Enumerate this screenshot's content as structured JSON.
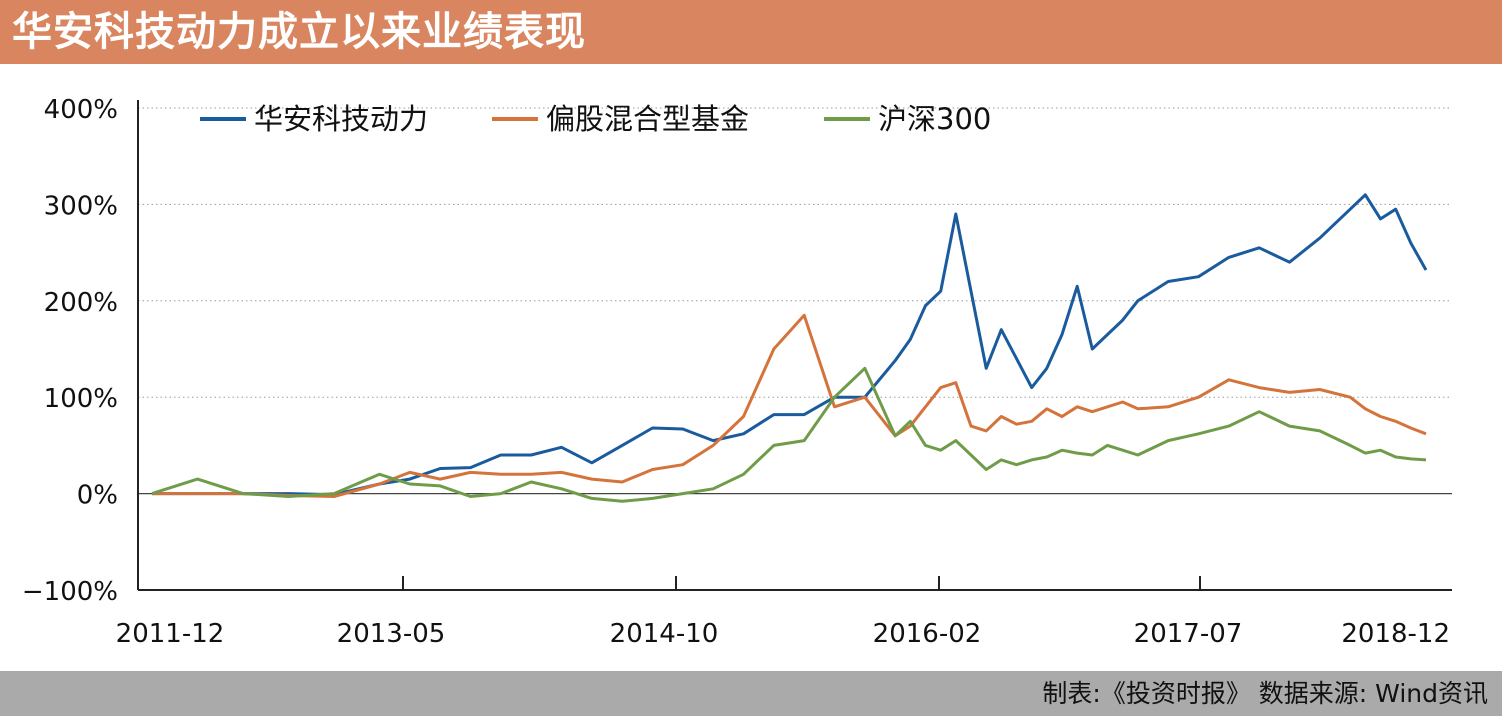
{
  "header": {
    "title": "华安科技动力成立以来业绩表现"
  },
  "footer": {
    "source": "制表:《投资时报》 数据来源: Wind资讯"
  },
  "colors": {
    "header_bg": "#d9855f",
    "footer_bg": "#aaaaaa",
    "series": [
      "#1a5b9e",
      "#d4743c",
      "#6f9c48"
    ]
  },
  "chart_data": {
    "type": "line",
    "y_unit": "%",
    "ylim": [
      -100,
      400
    ],
    "yticks": [
      -100,
      0,
      100,
      200,
      300,
      400
    ],
    "ytick_labels": [
      "−100%",
      "0%",
      "100%",
      "200%",
      "300%",
      "400%"
    ],
    "x_range": [
      "2011-12",
      "2018-12"
    ],
    "xtick_labels": [
      "2011-12",
      "2013-05",
      "2014-10",
      "2016-02",
      "2017-07",
      "2018-12"
    ],
    "grid": "horizontal dotted",
    "legend_position": "top-left",
    "series": [
      {
        "name": "华安科技动力",
        "color": "#1a5b9e",
        "points": [
          [
            "2011-12",
            0
          ],
          [
            "2012-03",
            0
          ],
          [
            "2012-06",
            0
          ],
          [
            "2012-09",
            0
          ],
          [
            "2012-12",
            -1
          ],
          [
            "2013-03",
            10
          ],
          [
            "2013-05",
            15
          ],
          [
            "2013-07",
            26
          ],
          [
            "2013-09",
            27
          ],
          [
            "2013-11",
            40
          ],
          [
            "2014-01",
            40
          ],
          [
            "2014-03",
            48
          ],
          [
            "2014-05",
            32
          ],
          [
            "2014-07",
            50
          ],
          [
            "2014-09",
            68
          ],
          [
            "2014-11",
            67
          ],
          [
            "2015-01",
            55
          ],
          [
            "2015-03",
            62
          ],
          [
            "2015-05",
            82
          ],
          [
            "2015-07",
            82
          ],
          [
            "2015-09",
            100
          ],
          [
            "2015-11",
            100
          ],
          [
            "2016-01",
            138
          ],
          [
            "2016-02",
            160
          ],
          [
            "2016-03",
            195
          ],
          [
            "2016-04",
            210
          ],
          [
            "2016-05",
            290
          ],
          [
            "2016-06",
            210
          ],
          [
            "2016-07",
            130
          ],
          [
            "2016-08",
            170
          ],
          [
            "2016-09",
            140
          ],
          [
            "2016-10",
            110
          ],
          [
            "2016-11",
            130
          ],
          [
            "2016-12",
            165
          ],
          [
            "2017-01",
            215
          ],
          [
            "2017-02",
            150
          ],
          [
            "2017-03",
            165
          ],
          [
            "2017-04",
            180
          ],
          [
            "2017-05",
            200
          ],
          [
            "2017-07",
            220
          ],
          [
            "2017-09",
            225
          ],
          [
            "2017-11",
            245
          ],
          [
            "2018-01",
            255
          ],
          [
            "2018-03",
            240
          ],
          [
            "2018-05",
            265
          ],
          [
            "2018-07",
            295
          ],
          [
            "2018-08",
            310
          ],
          [
            "2018-09",
            285
          ],
          [
            "2018-10",
            295
          ],
          [
            "2018-11",
            260
          ],
          [
            "2018-12",
            232
          ]
        ]
      },
      {
        "name": "偏股混合型基金",
        "color": "#d4743c",
        "points": [
          [
            "2011-12",
            0
          ],
          [
            "2012-03",
            0
          ],
          [
            "2012-06",
            0
          ],
          [
            "2012-09",
            -2
          ],
          [
            "2012-12",
            -3
          ],
          [
            "2013-03",
            10
          ],
          [
            "2013-05",
            22
          ],
          [
            "2013-07",
            15
          ],
          [
            "2013-09",
            22
          ],
          [
            "2013-11",
            20
          ],
          [
            "2014-01",
            20
          ],
          [
            "2014-03",
            22
          ],
          [
            "2014-05",
            15
          ],
          [
            "2014-07",
            12
          ],
          [
            "2014-09",
            25
          ],
          [
            "2014-11",
            30
          ],
          [
            "2015-01",
            50
          ],
          [
            "2015-03",
            80
          ],
          [
            "2015-05",
            150
          ],
          [
            "2015-07",
            185
          ],
          [
            "2015-09",
            90
          ],
          [
            "2015-11",
            100
          ],
          [
            "2016-01",
            60
          ],
          [
            "2016-02",
            70
          ],
          [
            "2016-03",
            90
          ],
          [
            "2016-04",
            110
          ],
          [
            "2016-05",
            115
          ],
          [
            "2016-06",
            70
          ],
          [
            "2016-07",
            65
          ],
          [
            "2016-08",
            80
          ],
          [
            "2016-09",
            72
          ],
          [
            "2016-10",
            75
          ],
          [
            "2016-11",
            88
          ],
          [
            "2016-12",
            80
          ],
          [
            "2017-01",
            90
          ],
          [
            "2017-02",
            85
          ],
          [
            "2017-03",
            90
          ],
          [
            "2017-04",
            95
          ],
          [
            "2017-05",
            88
          ],
          [
            "2017-07",
            90
          ],
          [
            "2017-09",
            100
          ],
          [
            "2017-11",
            118
          ],
          [
            "2018-01",
            110
          ],
          [
            "2018-03",
            105
          ],
          [
            "2018-05",
            108
          ],
          [
            "2018-07",
            100
          ],
          [
            "2018-08",
            88
          ],
          [
            "2018-09",
            80
          ],
          [
            "2018-10",
            75
          ],
          [
            "2018-11",
            68
          ],
          [
            "2018-12",
            62
          ]
        ]
      },
      {
        "name": "沪深300",
        "color": "#6f9c48",
        "points": [
          [
            "2011-12",
            0
          ],
          [
            "2012-03",
            15
          ],
          [
            "2012-06",
            0
          ],
          [
            "2012-09",
            -3
          ],
          [
            "2012-12",
            0
          ],
          [
            "2013-03",
            20
          ],
          [
            "2013-05",
            10
          ],
          [
            "2013-07",
            8
          ],
          [
            "2013-09",
            -3
          ],
          [
            "2013-11",
            0
          ],
          [
            "2014-01",
            12
          ],
          [
            "2014-03",
            5
          ],
          [
            "2014-05",
            -5
          ],
          [
            "2014-07",
            -8
          ],
          [
            "2014-09",
            -5
          ],
          [
            "2014-11",
            0
          ],
          [
            "2015-01",
            5
          ],
          [
            "2015-03",
            20
          ],
          [
            "2015-05",
            50
          ],
          [
            "2015-07",
            55
          ],
          [
            "2015-09",
            100
          ],
          [
            "2015-11",
            130
          ],
          [
            "2016-01",
            60
          ],
          [
            "2016-02",
            75
          ],
          [
            "2016-03",
            50
          ],
          [
            "2016-04",
            45
          ],
          [
            "2016-05",
            55
          ],
          [
            "2016-06",
            40
          ],
          [
            "2016-07",
            25
          ],
          [
            "2016-08",
            35
          ],
          [
            "2016-09",
            30
          ],
          [
            "2016-10",
            35
          ],
          [
            "2016-11",
            38
          ],
          [
            "2016-12",
            45
          ],
          [
            "2017-01",
            42
          ],
          [
            "2017-02",
            40
          ],
          [
            "2017-03",
            50
          ],
          [
            "2017-04",
            45
          ],
          [
            "2017-05",
            40
          ],
          [
            "2017-07",
            55
          ],
          [
            "2017-09",
            62
          ],
          [
            "2017-11",
            70
          ],
          [
            "2018-01",
            85
          ],
          [
            "2018-03",
            70
          ],
          [
            "2018-05",
            65
          ],
          [
            "2018-07",
            50
          ],
          [
            "2018-08",
            42
          ],
          [
            "2018-09",
            45
          ],
          [
            "2018-10",
            38
          ],
          [
            "2018-11",
            36
          ],
          [
            "2018-12",
            35
          ]
        ]
      }
    ]
  }
}
